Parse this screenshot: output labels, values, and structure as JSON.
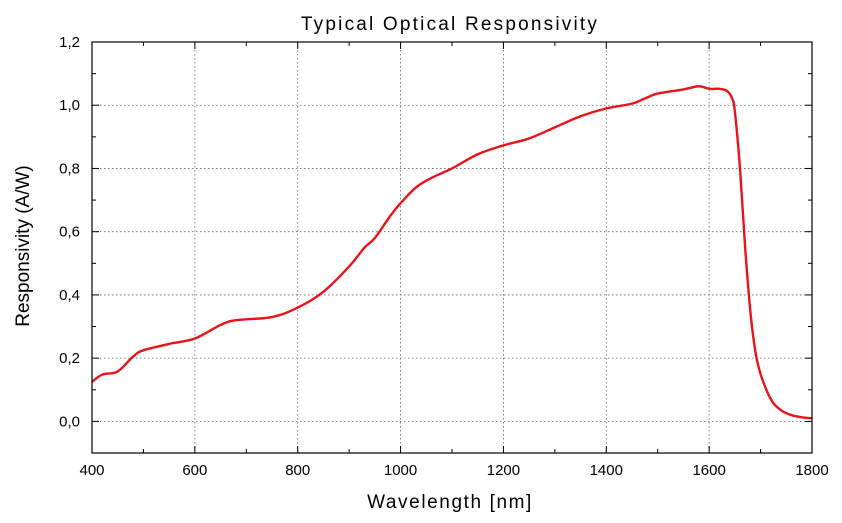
{
  "chart_data": {
    "type": "line",
    "title": "Typical Optical Responsivity",
    "xlabel": "Wavelength [nm]",
    "ylabel": "Responsivity (A/W)",
    "xlim": [
      400,
      1800
    ],
    "ylim": [
      -0.1,
      1.2
    ],
    "grid": true,
    "x_ticks": [
      400,
      600,
      800,
      1000,
      1200,
      1400,
      1600,
      1800
    ],
    "y_ticks": [
      0.0,
      0.2,
      0.4,
      0.6,
      0.8,
      1.0,
      1.2
    ],
    "x_tick_labels": [
      "400",
      "600",
      "800",
      "1000",
      "1200",
      "1400",
      "1600",
      "1800"
    ],
    "y_tick_labels": [
      "0,0",
      "0,2",
      "0,4",
      "0,6",
      "0,8",
      "1,0",
      "1,2"
    ],
    "series": [
      {
        "color": "#e8141b",
        "x": [
          400,
          420,
          450,
          480,
          500,
          550,
          600,
          650,
          680,
          750,
          800,
          850,
          900,
          930,
          950,
          980,
          1000,
          1030,
          1060,
          1100,
          1150,
          1200,
          1250,
          1300,
          1350,
          1400,
          1450,
          1480,
          1500,
          1550,
          1580,
          1600,
          1620,
          1635,
          1645,
          1650,
          1660,
          1670,
          1680,
          1690,
          1700,
          1720,
          1740,
          1760,
          1780,
          1800
        ],
        "y": [
          0.125,
          0.148,
          0.158,
          0.205,
          0.225,
          0.245,
          0.262,
          0.305,
          0.32,
          0.33,
          0.36,
          0.41,
          0.49,
          0.55,
          0.58,
          0.65,
          0.69,
          0.74,
          0.77,
          0.8,
          0.845,
          0.873,
          0.895,
          0.93,
          0.965,
          0.99,
          1.005,
          1.025,
          1.037,
          1.05,
          1.06,
          1.052,
          1.052,
          1.045,
          1.02,
          0.98,
          0.8,
          0.55,
          0.35,
          0.22,
          0.15,
          0.07,
          0.035,
          0.02,
          0.013,
          0.01
        ]
      }
    ]
  }
}
